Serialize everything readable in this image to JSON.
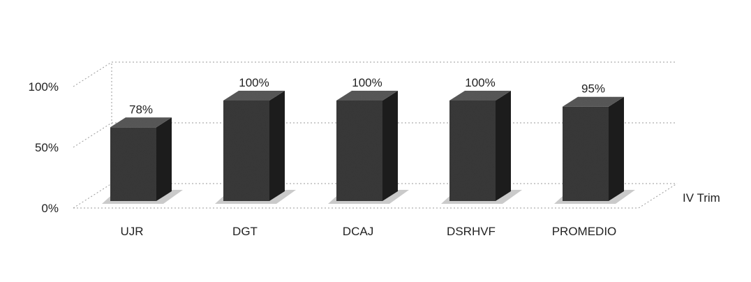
{
  "chart_data": {
    "type": "bar",
    "title": "",
    "xlabel": "",
    "ylabel": "",
    "categories": [
      "UJR",
      "DGT",
      "DCAJ",
      "DSRHVF",
      "PROMEDIO"
    ],
    "series": [
      {
        "name": "IV Trim",
        "values": [
          78,
          100,
          100,
          100,
          95
        ]
      }
    ],
    "data_labels": [
      "78%",
      "100%",
      "100%",
      "100%",
      "95%"
    ],
    "y_ticks": [
      "0%",
      "50%",
      "100%"
    ],
    "ylim": [
      0,
      100
    ],
    "grid": true,
    "style": "3d-column",
    "legend_position": "depth-axis label at right",
    "colors": {
      "bar": "#3a3a3a",
      "bar_side": "#1e1e1e",
      "bar_top": "#5a5a5a",
      "grid": "#9a9a9a"
    }
  }
}
